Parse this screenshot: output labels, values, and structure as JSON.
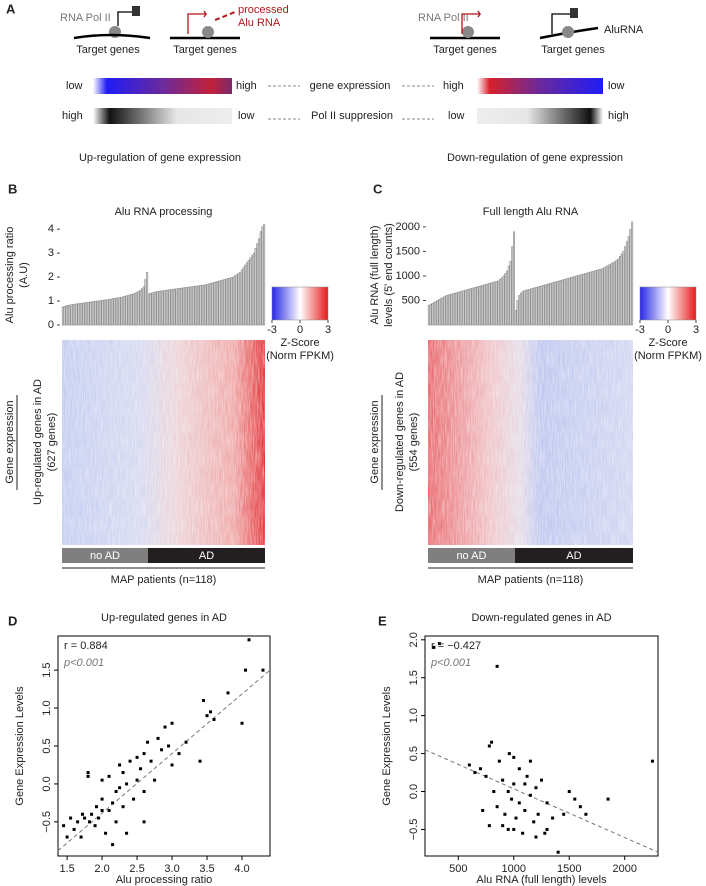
{
  "panel_a": {
    "label": "A",
    "left_schematic": {
      "pol": "RNA Pol II",
      "genes_1": "Target genes",
      "processed": [
        "processed",
        "Alu RNA"
      ],
      "genes_2": "Target genes"
    },
    "right_schematic": {
      "pol": "RNA Pol II",
      "genes_1": "Target genes",
      "alu": "AluRNA",
      "genes_2": "Target genes"
    },
    "expression_row": {
      "left": [
        "low",
        "high"
      ],
      "middle": "gene expression",
      "right": [
        "high",
        "low"
      ]
    },
    "suppression_row": {
      "left": [
        "high",
        "low"
      ],
      "middle": "Pol II suppresion",
      "right": [
        "low",
        "high"
      ]
    },
    "captions": [
      "Up-regulation of gene expression",
      "Down-regulation of gene expression"
    ]
  },
  "chart_data": [
    {
      "type": "bar",
      "panel": "B",
      "title": "Alu RNA processing",
      "ylabel": [
        "Alu processing ratio",
        "(A.U)"
      ],
      "values": [
        0.75,
        0.78,
        0.8,
        0.82,
        0.83,
        0.85,
        0.86,
        0.87,
        0.88,
        0.89,
        0.9,
        0.91,
        0.92,
        0.93,
        0.94,
        0.95,
        0.96,
        0.97,
        0.98,
        0.99,
        1.0,
        1.01,
        1.02,
        1.03,
        1.04,
        1.05,
        1.06,
        1.07,
        1.08,
        1.1,
        1.11,
        1.12,
        1.13,
        1.15,
        1.16,
        1.18,
        1.2,
        1.22,
        1.24,
        1.26,
        1.28,
        1.3,
        1.33,
        1.36,
        1.4,
        1.45,
        1.52,
        1.6,
        1.9,
        2.2,
        1.3,
        1.32,
        1.34,
        1.36,
        1.38,
        1.4,
        1.41,
        1.42,
        1.43,
        1.44,
        1.45,
        1.46,
        1.47,
        1.48,
        1.49,
        1.5,
        1.51,
        1.52,
        1.53,
        1.54,
        1.55,
        1.56,
        1.57,
        1.58,
        1.59,
        1.6,
        1.61,
        1.62,
        1.63,
        1.64,
        1.65,
        1.66,
        1.67,
        1.68,
        1.7,
        1.72,
        1.74,
        1.76,
        1.78,
        1.8,
        1.82,
        1.84,
        1.86,
        1.88,
        1.9,
        1.92,
        1.94,
        1.96,
        1.98,
        2.0,
        2.05,
        2.1,
        2.15,
        2.2,
        2.3,
        2.4,
        2.5,
        2.6,
        2.7,
        2.8,
        2.9,
        3.0,
        3.2,
        3.4,
        3.6,
        3.9,
        4.1,
        4.2
      ],
      "color": "#8c8c8c",
      "ylim": [
        0,
        4.3
      ],
      "yticks": [
        0,
        1,
        2,
        3,
        4
      ],
      "heatmap": {
        "ylabel": [
          "Gene expression",
          "Up-regulated genes in AD",
          "(627 genes)"
        ],
        "colorbar_ticks": [
          -3,
          0,
          3
        ],
        "colorbar_label": [
          "Z-Score",
          "(Norm FPKM)"
        ]
      },
      "groups": [
        {
          "label": "no AD",
          "count": 50,
          "color": "#7f7f7f"
        },
        {
          "label": "AD",
          "count": 68,
          "color": "#231f20"
        }
      ],
      "xlabel": "MAP patients (n=118)"
    },
    {
      "type": "bar",
      "panel": "C",
      "title": "Full length Alu RNA",
      "ylabel": [
        "Alu RNA (full length)",
        "levels  (5' end counts)"
      ],
      "values": [
        400,
        420,
        440,
        460,
        480,
        500,
        520,
        540,
        560,
        580,
        600,
        610,
        620,
        630,
        640,
        650,
        660,
        670,
        680,
        690,
        700,
        710,
        720,
        730,
        740,
        750,
        760,
        770,
        780,
        790,
        800,
        810,
        820,
        830,
        840,
        850,
        860,
        870,
        880,
        890,
        900,
        930,
        960,
        1000,
        1050,
        1100,
        1200,
        1300,
        1600,
        1900,
        300,
        500,
        600,
        650,
        680,
        700,
        710,
        720,
        730,
        740,
        750,
        760,
        770,
        780,
        790,
        800,
        810,
        820,
        830,
        840,
        850,
        860,
        870,
        880,
        890,
        900,
        910,
        920,
        930,
        940,
        950,
        960,
        970,
        980,
        990,
        1000,
        1010,
        1020,
        1030,
        1040,
        1050,
        1060,
        1070,
        1080,
        1090,
        1100,
        1110,
        1120,
        1130,
        1140,
        1150,
        1170,
        1190,
        1210,
        1230,
        1250,
        1270,
        1290,
        1320,
        1350,
        1400,
        1450,
        1500,
        1600,
        1700,
        1800,
        1950,
        2100
      ],
      "color": "#8c8c8c",
      "ylim": [
        0,
        2100
      ],
      "yticks": [
        500,
        1000,
        1500,
        2000
      ],
      "heatmap": {
        "ylabel": [
          "Gene expression",
          "Down-regulated genes in AD",
          "(554 genes)"
        ],
        "colorbar_ticks": [
          -3,
          0,
          3
        ],
        "colorbar_label": [
          "Z-Score",
          "(Norm FPKM)"
        ]
      },
      "groups": [
        {
          "label": "no AD",
          "count": 50,
          "color": "#7f7f7f"
        },
        {
          "label": "AD",
          "count": 68,
          "color": "#231f20"
        }
      ],
      "xlabel": "MAP patients (n=118)"
    },
    {
      "type": "scatter",
      "panel": "D",
      "title": "Up-regulated genes in AD",
      "x": [
        1.45,
        1.5,
        1.55,
        1.6,
        1.65,
        1.7,
        1.72,
        1.75,
        1.8,
        1.82,
        1.85,
        1.9,
        1.92,
        1.95,
        2.0,
        2.0,
        2.05,
        2.1,
        2.1,
        2.15,
        2.2,
        2.2,
        2.25,
        2.3,
        2.3,
        2.35,
        2.4,
        2.45,
        2.5,
        2.5,
        2.55,
        2.6,
        2.6,
        2.65,
        2.7,
        2.75,
        2.8,
        2.85,
        2.9,
        2.95,
        3.0,
        3.0,
        3.1,
        3.2,
        3.4,
        3.45,
        3.5,
        3.55,
        3.6,
        3.8,
        4.0,
        4.05,
        4.1,
        4.3,
        2.15,
        2.35,
        1.8,
        2.0,
        2.25,
        2.6
      ],
      "values": [
        -0.55,
        -0.7,
        -0.45,
        -0.6,
        -0.5,
        -0.7,
        -0.4,
        -0.45,
        0.15,
        -0.5,
        -0.4,
        -0.55,
        -0.3,
        -0.45,
        -0.2,
        0.05,
        -0.65,
        -0.35,
        0.1,
        -0.25,
        -0.5,
        -0.1,
        -0.05,
        -0.3,
        0.15,
        0.0,
        0.3,
        -0.2,
        0.35,
        0.05,
        0.2,
        0.4,
        -0.1,
        0.55,
        0.3,
        0.05,
        0.6,
        0.45,
        0.75,
        0.5,
        0.8,
        0.25,
        0.4,
        0.55,
        0.3,
        1.1,
        0.9,
        0.95,
        0.85,
        1.2,
        0.8,
        1.5,
        1.9,
        1.5,
        -0.8,
        -0.65,
        0.1,
        -0.35,
        0.25,
        -0.5
      ],
      "color": "#000000",
      "xlim": [
        1.37,
        4.4
      ],
      "ylim": [
        -0.95,
        1.95
      ],
      "xticks": [
        1.5,
        {
          "value": 2,
          "label": "2.0"
        },
        2.5,
        {
          "value": 3,
          "label": "3.0"
        },
        3.5,
        {
          "value": 4,
          "label": "4.0"
        }
      ],
      "yticks": [
        {
          "value": -0.5,
          "label": "−0.5"
        },
        {
          "value": 0,
          "label": "0.0"
        },
        0.5,
        {
          "value": 1,
          "label": "1.0"
        },
        1.5
      ],
      "xlabel": "Alu processing ratio",
      "ylabel": "Gene Expression Levels",
      "annotations": [
        "r = 0.884",
        "p<0.001"
      ],
      "fit": {
        "x": [
          1.37,
          4.4
        ],
        "values": [
          -0.88,
          1.5
        ],
        "color": "#777777"
      }
    },
    {
      "type": "scatter",
      "panel": "E",
      "title": "Down-regulated genes in AD",
      "x": [
        280,
        330,
        850,
        2250,
        1850,
        600,
        650,
        700,
        720,
        750,
        780,
        800,
        820,
        850,
        870,
        900,
        920,
        950,
        960,
        980,
        1000,
        1000,
        1020,
        1050,
        1080,
        1100,
        1100,
        1120,
        1150,
        1180,
        1200,
        1220,
        1250,
        1280,
        1300,
        1350,
        1400,
        1450,
        1500,
        1550,
        1600,
        1650,
        780,
        900,
        1050,
        1150,
        1300,
        950,
        1000,
        1200
      ],
      "values": [
        1.9,
        1.95,
        1.65,
        0.4,
        -0.1,
        0.35,
        0.25,
        0.3,
        -0.25,
        0.2,
        0.6,
        0.65,
        0.0,
        -0.2,
        0.4,
        -0.45,
        -0.3,
        0.0,
        0.5,
        -0.1,
        0.45,
        -0.5,
        -0.35,
        0.3,
        -0.55,
        0.1,
        -0.25,
        0.2,
        -0.05,
        -0.4,
        0.05,
        -0.3,
        0.15,
        -0.55,
        -0.15,
        -0.35,
        -0.8,
        -0.3,
        0.0,
        -0.1,
        -0.2,
        -0.3,
        -0.45,
        0.15,
        -0.15,
        0.4,
        -0.5,
        -0.5,
        0.1,
        -0.6
      ],
      "color": "#000000",
      "xlim": [
        200,
        2300
      ],
      "ylim": [
        -0.85,
        2.05
      ],
      "xticks": [
        500,
        1000,
        1500,
        2000
      ],
      "yticks": [
        {
          "value": -0.5,
          "label": "−0.5"
        },
        {
          "value": 0,
          "label": "0.0"
        },
        0.5,
        {
          "value": 1,
          "label": "1.0"
        },
        1.5,
        {
          "value": 2,
          "label": "2.0"
        }
      ],
      "xlabel": "Alu RNA (full length) levels",
      "ylabel": "Gene Expression Levels",
      "annotations": [
        "r = −0.427",
        "p<0.001"
      ],
      "fit": {
        "x": [
          200,
          2300
        ],
        "values": [
          0.55,
          -0.8
        ],
        "color": "#777777"
      }
    }
  ]
}
